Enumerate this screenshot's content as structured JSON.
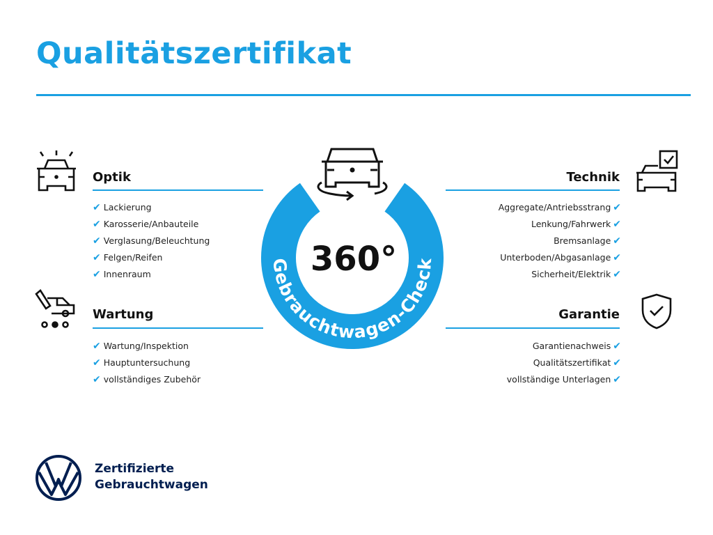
{
  "title": "Qualitätszertifikat",
  "center": {
    "number": "360°",
    "arc_text": "Gebrauchtwagen-Check",
    "ring_color": "#1aa0e2"
  },
  "sections": {
    "optik": {
      "heading": "Optik",
      "icon": "car-lights-icon",
      "items": [
        "Lackierung",
        "Karosserie/Anbauteile",
        "Verglasung/Beleuchtung",
        "Felgen/Reifen",
        "Innenraum"
      ]
    },
    "wartung": {
      "heading": "Wartung",
      "icon": "car-service-icon",
      "items": [
        "Wartung/Inspektion",
        "Hauptuntersuchung",
        "vollständiges Zubehör"
      ]
    },
    "technik": {
      "heading": "Technik",
      "icon": "car-checklist-icon",
      "items": [
        "Aggregate/Antriebsstrang",
        "Lenkung/Fahrwerk",
        "Bremsanlage",
        "Unterboden/Abgasanlage",
        "Sicherheit/Elektrik"
      ]
    },
    "garantie": {
      "heading": "Garantie",
      "icon": "shield-check-icon",
      "items": [
        "Garantienachweis",
        "Qualitätszertifikat",
        "vollständige Unterlagen"
      ]
    }
  },
  "check_mark": "✔",
  "brand": {
    "line1": "Zertifizierte",
    "line2": "Gebrauchtwagen",
    "logo": "vw-logo"
  },
  "colors": {
    "accent": "#1aa0e2",
    "brand_navy": "#001e50"
  }
}
